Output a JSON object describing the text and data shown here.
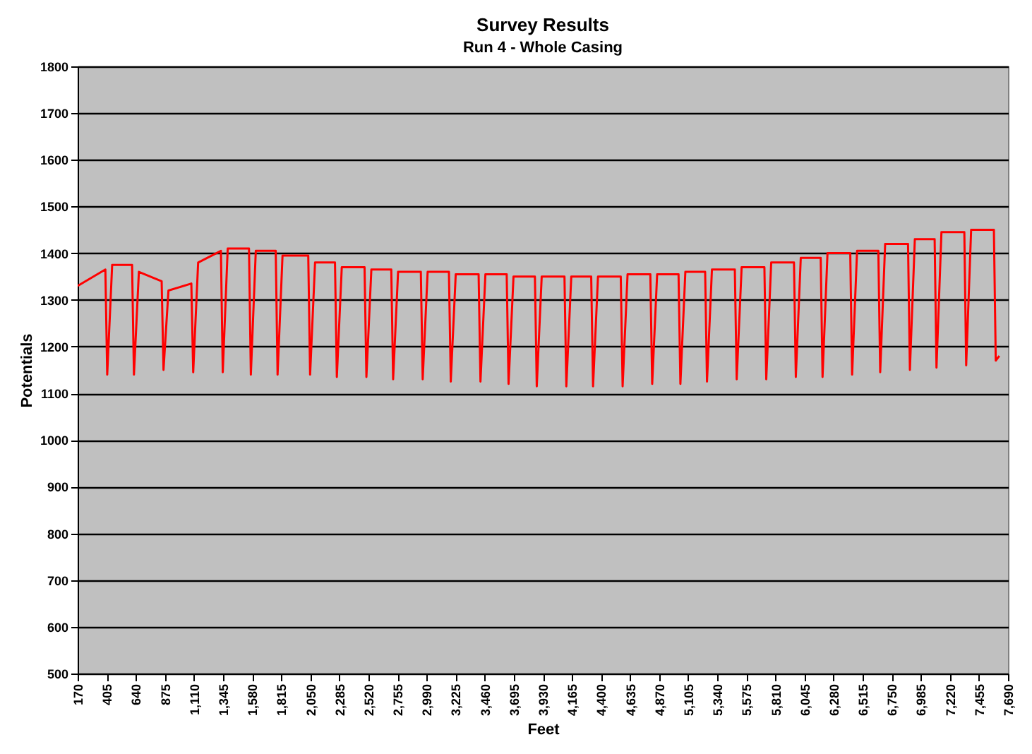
{
  "chart_data": {
    "type": "line",
    "title": "Survey Results",
    "subtitle": "Run 4 - Whole Casing",
    "xlabel": "Feet",
    "ylabel": "Potentials",
    "x": [
      170,
      394,
      409,
      449,
      610,
      625,
      665,
      849,
      864,
      904,
      1089,
      1104,
      1144,
      1328,
      1343,
      1383,
      1555,
      1570,
      1610,
      1771,
      1786,
      1826,
      2034,
      2049,
      2089,
      2250,
      2265,
      2305,
      2489,
      2504,
      2544,
      2705,
      2720,
      2760,
      2944,
      2959,
      2999,
      3171,
      3186,
      3226,
      3411,
      3426,
      3466,
      3638,
      3653,
      3693,
      3866,
      3881,
      3921,
      4105,
      4120,
      4160,
      4321,
      4336,
      4376,
      4560,
      4575,
      4615,
      4799,
      4814,
      4854,
      5027,
      5042,
      5082,
      5242,
      5257,
      5297,
      5482,
      5497,
      5537,
      5721,
      5736,
      5776,
      5960,
      5975,
      6015,
      6176,
      6191,
      6231,
      6415,
      6430,
      6470,
      6642,
      6657,
      6697,
      6882,
      6897,
      6937,
      7097,
      7112,
      7152,
      7337,
      7352,
      7392,
      7576,
      7591,
      7620
    ],
    "series": [
      {
        "color": "#ff0000",
        "values": [
          1330,
          1365,
          1140,
          1375,
          1375,
          1140,
          1360,
          1340,
          1150,
          1320,
          1335,
          1145,
          1380,
          1405,
          1145,
          1410,
          1410,
          1140,
          1405,
          1405,
          1140,
          1395,
          1395,
          1140,
          1380,
          1380,
          1135,
          1370,
          1370,
          1135,
          1365,
          1365,
          1130,
          1360,
          1360,
          1130,
          1360,
          1360,
          1125,
          1355,
          1355,
          1125,
          1355,
          1355,
          1120,
          1350,
          1350,
          1115,
          1350,
          1350,
          1115,
          1350,
          1350,
          1115,
          1350,
          1350,
          1115,
          1355,
          1355,
          1120,
          1355,
          1355,
          1120,
          1360,
          1360,
          1125,
          1365,
          1365,
          1130,
          1370,
          1370,
          1130,
          1380,
          1380,
          1135,
          1390,
          1390,
          1135,
          1400,
          1400,
          1140,
          1405,
          1405,
          1145,
          1420,
          1420,
          1150,
          1430,
          1430,
          1155,
          1445,
          1445,
          1160,
          1450,
          1450,
          1170,
          1180
        ]
      }
    ],
    "xlim": [
      170,
      7690
    ],
    "xticks": [
      170,
      405,
      640,
      875,
      {
        "value": 1110,
        "label": "1,110"
      },
      {
        "value": 1345,
        "label": "1,345"
      },
      {
        "value": 1580,
        "label": "1,580"
      },
      {
        "value": 1815,
        "label": "1,815"
      },
      {
        "value": 2050,
        "label": "2,050"
      },
      {
        "value": 2285,
        "label": "2,285"
      },
      {
        "value": 2520,
        "label": "2,520"
      },
      {
        "value": 2755,
        "label": "2,755"
      },
      {
        "value": 2990,
        "label": "2,990"
      },
      {
        "value": 3225,
        "label": "3,225"
      },
      {
        "value": 3460,
        "label": "3,460"
      },
      {
        "value": 3695,
        "label": "3,695"
      },
      {
        "value": 3930,
        "label": "3,930"
      },
      {
        "value": 4165,
        "label": "4,165"
      },
      {
        "value": 4400,
        "label": "4,400"
      },
      {
        "value": 4635,
        "label": "4,635"
      },
      {
        "value": 4870,
        "label": "4,870"
      },
      {
        "value": 5105,
        "label": "5,105"
      },
      {
        "value": 5340,
        "label": "5,340"
      },
      {
        "value": 5575,
        "label": "5,575"
      },
      {
        "value": 5810,
        "label": "5,810"
      },
      {
        "value": 6045,
        "label": "6,045"
      },
      {
        "value": 6280,
        "label": "6,280"
      },
      {
        "value": 6515,
        "label": "6,515"
      },
      {
        "value": 6750,
        "label": "6,750"
      },
      {
        "value": 6985,
        "label": "6,985"
      },
      {
        "value": 7220,
        "label": "7,220"
      },
      {
        "value": 7455,
        "label": "7,455"
      },
      {
        "value": 7690,
        "label": "7,690"
      }
    ],
    "ylim": [
      500,
      1800
    ],
    "yticks": [
      500,
      600,
      700,
      800,
      900,
      1000,
      1100,
      1200,
      1300,
      1400,
      1500,
      1600,
      1700,
      1800
    ],
    "grid": "y",
    "legend": false,
    "marker": "none",
    "line_style": "solid"
  }
}
